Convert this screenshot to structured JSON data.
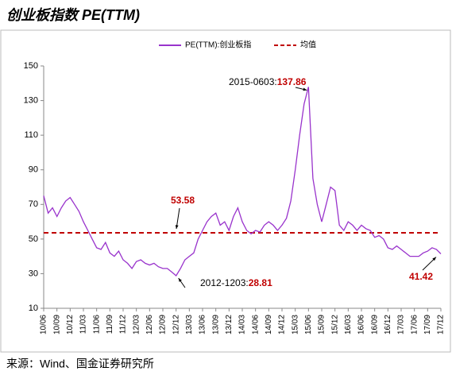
{
  "chart_data": {
    "type": "line",
    "title": "创业板指数 PE(TTM)",
    "source": "来源：Wind、国金证券研究所",
    "categories": [
      "10/06",
      null,
      null,
      "10/09",
      null,
      null,
      "10/12",
      null,
      null,
      "11/03",
      null,
      null,
      "11/06",
      null,
      null,
      "11/09",
      null,
      null,
      "11/12",
      null,
      null,
      "12/03",
      null,
      null,
      "12/06",
      null,
      null,
      "12/09",
      null,
      null,
      "12/12",
      null,
      null,
      "13/03",
      null,
      null,
      "13/06",
      null,
      null,
      "13/09",
      null,
      null,
      "13/12",
      null,
      null,
      "14/03",
      null,
      null,
      "14/06",
      null,
      null,
      "14/09",
      null,
      null,
      "14/12",
      null,
      null,
      "15/03",
      null,
      null,
      "15/06",
      null,
      null,
      "15/09",
      null,
      null,
      "15/12",
      null,
      null,
      "16/03",
      null,
      null,
      "16/06",
      null,
      null,
      "16/09",
      null,
      null,
      "16/12",
      null,
      null,
      "17/03",
      null,
      null,
      "17/06",
      null,
      null,
      "17/09",
      null,
      null,
      "17/12"
    ],
    "series": [
      {
        "name": "PE(TTM):创业板指",
        "color": "#9933cc",
        "values": [
          75,
          65,
          68,
          63,
          68,
          72,
          74,
          70,
          66,
          60,
          55,
          50,
          45,
          44,
          48,
          42,
          40,
          43,
          38,
          36,
          33,
          37,
          38,
          36,
          35,
          36,
          34,
          33,
          33,
          31,
          28.81,
          33,
          38,
          40,
          42,
          50,
          55,
          60,
          63,
          65,
          58,
          60,
          55,
          63,
          68,
          60,
          55,
          53,
          55,
          54,
          58,
          60,
          58,
          55,
          58,
          62,
          72,
          90,
          110,
          128,
          137.86,
          85,
          70,
          60,
          70,
          80,
          78,
          58,
          55,
          60,
          58,
          55,
          58,
          56,
          55,
          51,
          52,
          50,
          45,
          44,
          46,
          44,
          42,
          40,
          40,
          40,
          42,
          43,
          45,
          44,
          41.42
        ]
      }
    ],
    "reference_line": {
      "name": "均值",
      "value": 53.58,
      "color": "#c00000"
    },
    "annotations": [
      {
        "label": "2015-0603:"
      },
      {
        "label": "2012-1203:"
      }
    ],
    "ylim": [
      10,
      150
    ],
    "yticks": [
      10,
      30,
      50,
      70,
      90,
      110,
      130,
      150
    ]
  }
}
